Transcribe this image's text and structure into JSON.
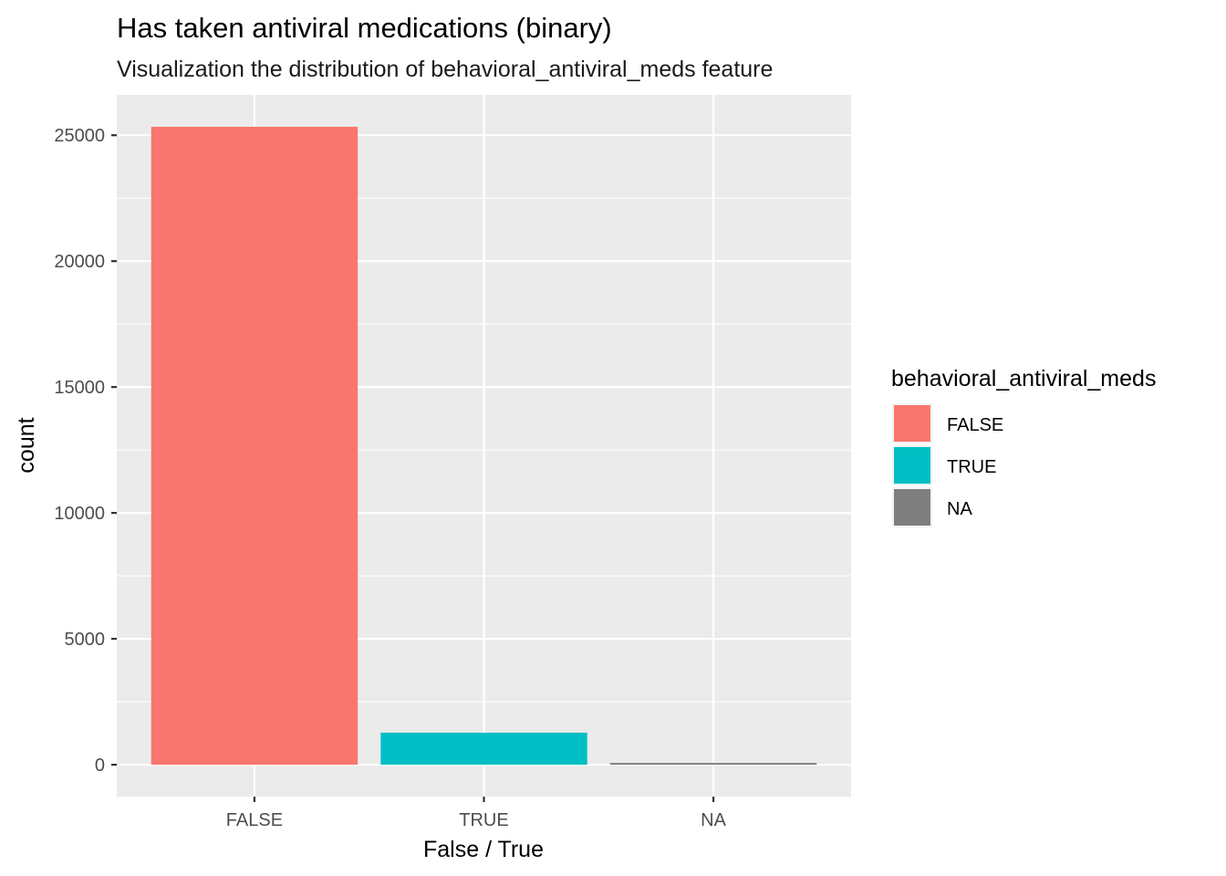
{
  "chart_data": {
    "type": "bar",
    "title": "Has taken antiviral medications (binary)",
    "subtitle": "Visualization the distribution of behavioral_antiviral_meds feature",
    "xlabel": "False / True",
    "ylabel": "count",
    "categories": [
      "FALSE",
      "TRUE",
      "NA"
    ],
    "values": [
      25335,
      1272,
      71
    ],
    "colors": [
      "#F8766D",
      "#00BFC4",
      "#7F7F7F"
    ],
    "ylim": [
      -1266.75,
      26601.75
    ],
    "yticks": [
      0,
      5000,
      10000,
      15000,
      20000,
      25000
    ],
    "ytick_labels": [
      "0",
      "5000",
      "10000",
      "15000",
      "20000",
      "25000"
    ],
    "grid": true,
    "background": "#EBEBEB",
    "legend": {
      "title": "behavioral_antiviral_meds",
      "position": "right",
      "items": [
        {
          "label": "FALSE",
          "color": "#F8766D"
        },
        {
          "label": "TRUE",
          "color": "#00BFC4"
        },
        {
          "label": "NA",
          "color": "#7F7F7F"
        }
      ]
    }
  }
}
